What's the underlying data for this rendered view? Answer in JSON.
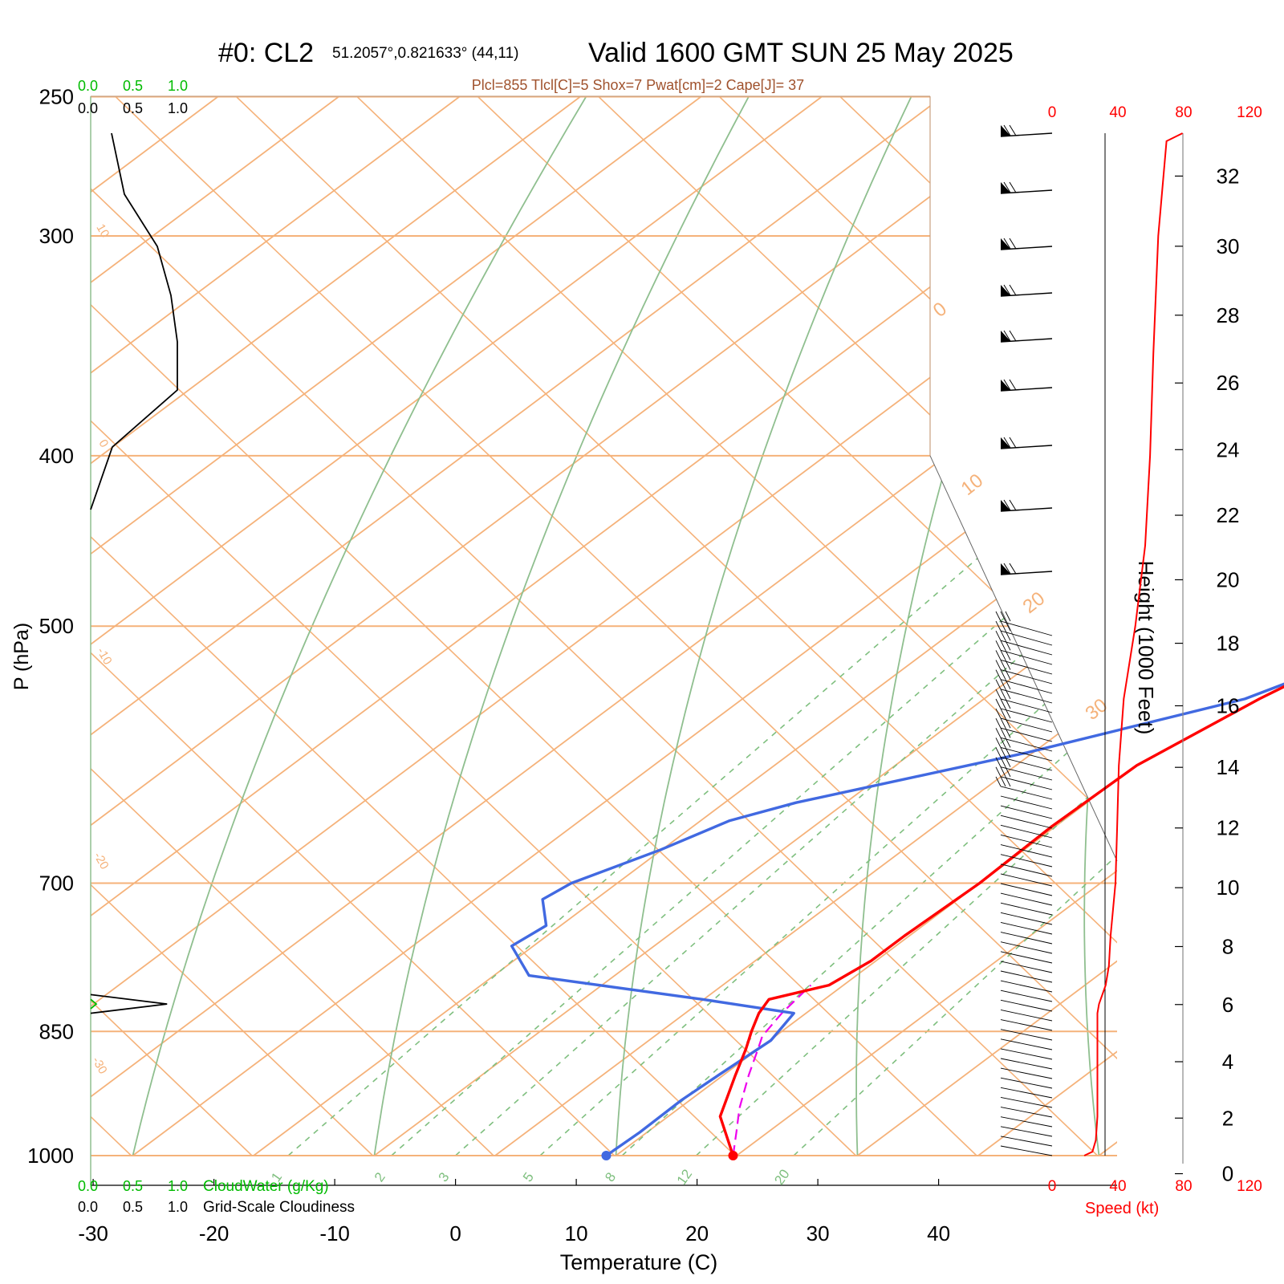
{
  "header": {
    "title_left": "#0: CL2",
    "title_coords": "51.2057°,0.821633° (44,11)",
    "title_valid": "Valid 1600 GMT SUN 25 May 2025",
    "indices": "Plcl=855 Tlcl[C]=5 Shox=7 Pwat[cm]=2 Cape[J]= 37"
  },
  "colors": {
    "isotherm": "#f5b27a",
    "dry_adiabat": "#8fbf8f",
    "mixing_ratio": "#7fbf7f",
    "temperature": "#ff0000",
    "dewpoint": "#4169e1",
    "parcel": "#ee00ee",
    "cloud": "#000000",
    "cloudwater": "#00bb00",
    "speed": "#ff0000",
    "indices": "#a0522d"
  },
  "chart_data": {
    "type": "skew-t",
    "xlabel": "Temperature (C)",
    "ylabel": "P (hPa)",
    "y2label": "Height (1000 Feet)",
    "temp_ticks": [
      -30,
      -20,
      -10,
      0,
      10,
      20,
      30,
      40
    ],
    "pressure_ticks": [
      250,
      300,
      400,
      500,
      700,
      850,
      1000
    ],
    "height_ticks": [
      0,
      2,
      4,
      6,
      8,
      10,
      12,
      14,
      16,
      18,
      20,
      22,
      24,
      26,
      28,
      30,
      32
    ],
    "isotherm_labels": [
      "0",
      "10",
      "20",
      "30"
    ],
    "isotherm_left_labels": [
      "10",
      "0",
      "-10",
      "-20",
      "-30"
    ],
    "mixing_ratio_labels": [
      "1",
      "2",
      "3",
      "5",
      "8",
      "12",
      "20"
    ],
    "cloudwater_ticks": [
      "0.0",
      "0.5",
      "1.0"
    ],
    "cloudiness_ticks": [
      "0.0",
      "0.5",
      "1.0"
    ],
    "cloudwater_label": "CloudWater (g/Kg)",
    "cloudiness_label": "Grid-Scale Cloudiness",
    "speed_ticks": [
      "0",
      "40",
      "80",
      "120"
    ],
    "speed_label": "Speed (kt)",
    "temperature": [
      [
        1000,
        19.7
      ],
      [
        950,
        14.3
      ],
      [
        900,
        11
      ],
      [
        870,
        9
      ],
      [
        850,
        7.5
      ],
      [
        830,
        6.1
      ],
      [
        815,
        5.4
      ],
      [
        800,
        8.8
      ],
      [
        775,
        9.6
      ],
      [
        750,
        9.6
      ],
      [
        700,
        10
      ],
      [
        650,
        9.7
      ],
      [
        600,
        10
      ],
      [
        550,
        12.8
      ],
      [
        500,
        16.9
      ],
      [
        450,
        20.4
      ],
      [
        400,
        24.8
      ],
      [
        350,
        29.8
      ],
      [
        300,
        35.4
      ],
      [
        265,
        39.3
      ]
    ],
    "dewpoint": [
      [
        1000,
        9.2
      ],
      [
        970,
        9.4
      ],
      [
        930,
        9.3
      ],
      [
        900,
        9.6
      ],
      [
        860,
        10.1
      ],
      [
        830,
        9
      ],
      [
        815,
        -0.1
      ],
      [
        790,
        -17.1
      ],
      [
        760,
        -21.8
      ],
      [
        740,
        -21.2
      ],
      [
        715,
        -24.4
      ],
      [
        700,
        -23.8
      ],
      [
        670,
        -20.1
      ],
      [
        645,
        -17.6
      ],
      [
        630,
        -14.1
      ],
      [
        590,
        -0.5
      ],
      [
        550,
        11.6
      ],
      [
        500,
        19.4
      ],
      [
        450,
        18.9
      ],
      [
        420,
        12.2
      ],
      [
        400,
        12.1
      ],
      [
        350,
        12.2
      ],
      [
        320,
        11.5
      ],
      [
        300,
        9.9
      ],
      [
        265,
        7.3
      ]
    ],
    "parcel": [
      [
        1000,
        19.7
      ],
      [
        970,
        17.4
      ],
      [
        940,
        15
      ],
      [
        900,
        12.1
      ],
      [
        870,
        10
      ],
      [
        855,
        8.9
      ],
      [
        830,
        8
      ],
      [
        800,
        7.3
      ]
    ],
    "cloud_fraction": [
      [
        830,
        0
      ],
      [
        820,
        0.85
      ],
      [
        810,
        0
      ]
    ],
    "wind_speed": [
      [
        1000,
        2
      ],
      [
        995,
        7
      ],
      [
        980,
        9
      ],
      [
        950,
        10
      ],
      [
        900,
        10
      ],
      [
        850,
        10
      ],
      [
        830,
        10
      ],
      [
        820,
        11
      ],
      [
        800,
        15
      ],
      [
        780,
        17
      ],
      [
        750,
        18
      ],
      [
        700,
        21
      ],
      [
        650,
        22
      ],
      [
        600,
        23
      ],
      [
        550,
        26
      ],
      [
        500,
        33
      ],
      [
        450,
        39
      ],
      [
        400,
        42
      ],
      [
        350,
        44
      ],
      [
        300,
        47
      ],
      [
        265,
        52
      ]
    ],
    "barb_heights_kft": [
      0.5,
      1.5,
      2.5,
      3.5,
      4.5,
      5.5,
      6.5,
      7.5,
      8.5,
      9.5,
      10.5,
      11.5,
      13,
      14.5,
      16,
      17.5,
      19.5,
      21.5,
      23.5,
      25.5,
      27,
      28.5,
      30,
      31.5,
      33
    ]
  }
}
